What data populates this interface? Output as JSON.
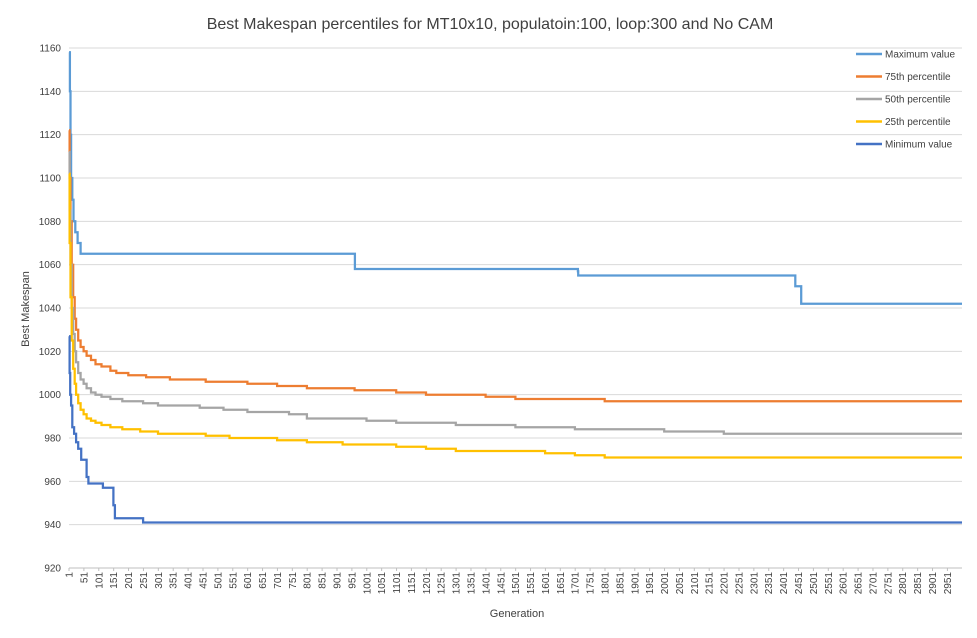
{
  "chart_data": {
    "type": "line",
    "title": "Best Makespan percentiles for MT10x10, populatoin:100, loop:300 and No CAM",
    "xlabel": "Generation",
    "ylabel": "Best Makespan",
    "ylim": [
      920,
      1160
    ],
    "yticks": [
      920,
      940,
      960,
      980,
      1000,
      1020,
      1040,
      1060,
      1080,
      1100,
      1120,
      1140,
      1160
    ],
    "xlim": [
      1,
      3000
    ],
    "xticks": [
      1,
      51,
      101,
      151,
      201,
      251,
      301,
      351,
      401,
      451,
      501,
      551,
      601,
      651,
      701,
      751,
      801,
      851,
      901,
      951,
      1001,
      1051,
      1101,
      1151,
      1201,
      1251,
      1301,
      1351,
      1401,
      1451,
      1501,
      1551,
      1601,
      1651,
      1701,
      1751,
      1801,
      1851,
      1901,
      1951,
      2001,
      2051,
      2101,
      2151,
      2201,
      2251,
      2301,
      2351,
      2401,
      2451,
      2501,
      2551,
      2601,
      2651,
      2701,
      2751,
      2801,
      2851,
      2901,
      2951
    ],
    "grid": "horizontal",
    "legend_position": "top-right",
    "series": [
      {
        "name": "Maximum value",
        "color": "#5b9bd5",
        "x": [
          1,
          4,
          6,
          8,
          12,
          16,
          22,
          30,
          40,
          960,
          961,
          1700,
          1710,
          1711,
          2430,
          2440,
          2441,
          2460,
          2461,
          3000
        ],
        "y": [
          1158,
          1140,
          1120,
          1100,
          1090,
          1080,
          1075,
          1070,
          1065,
          1065,
          1058,
          1058,
          1057,
          1055,
          1055,
          1050,
          1050,
          1042,
          1042,
          1042
        ]
      },
      {
        "name": "75th percentile",
        "color": "#ed7d31",
        "x": [
          1,
          3,
          6,
          10,
          15,
          20,
          25,
          32,
          40,
          50,
          60,
          75,
          90,
          110,
          140,
          160,
          200,
          260,
          340,
          460,
          600,
          700,
          800,
          960,
          1100,
          1200,
          1300,
          1400,
          1500,
          1650,
          1800,
          1900,
          2100,
          2500,
          3000
        ],
        "y": [
          1122,
          1100,
          1080,
          1060,
          1045,
          1035,
          1030,
          1025,
          1022,
          1020,
          1018,
          1016,
          1014,
          1013,
          1011,
          1010,
          1009,
          1008,
          1007,
          1006,
          1005,
          1004,
          1003,
          1002,
          1001,
          1000,
          1000,
          999,
          998,
          998,
          997,
          997,
          997,
          997,
          997
        ]
      },
      {
        "name": "50th percentile",
        "color": "#a5a5a5",
        "x": [
          1,
          3,
          6,
          10,
          15,
          20,
          25,
          32,
          40,
          50,
          60,
          75,
          90,
          110,
          140,
          180,
          250,
          300,
          440,
          520,
          600,
          740,
          800,
          1000,
          1100,
          1300,
          1500,
          1600,
          1700,
          1800,
          2000,
          2100,
          2200,
          3000
        ],
        "y": [
          1112,
          1085,
          1060,
          1040,
          1028,
          1020,
          1015,
          1010,
          1007,
          1005,
          1003,
          1001,
          1000,
          999,
          998,
          997,
          996,
          995,
          994,
          993,
          992,
          991,
          989,
          988,
          987,
          986,
          985,
          985,
          984,
          984,
          983,
          983,
          982,
          982
        ]
      },
      {
        "name": "25th percentile",
        "color": "#ffc000",
        "x": [
          1,
          3,
          6,
          10,
          15,
          20,
          25,
          32,
          40,
          50,
          60,
          75,
          90,
          110,
          140,
          180,
          240,
          300,
          460,
          540,
          700,
          800,
          920,
          1100,
          1200,
          1300,
          1500,
          1600,
          1700,
          1800,
          1900,
          2200,
          3000
        ],
        "y": [
          1102,
          1070,
          1045,
          1025,
          1012,
          1005,
          1000,
          996,
          993,
          991,
          989,
          988,
          987,
          986,
          985,
          984,
          983,
          982,
          981,
          980,
          979,
          978,
          977,
          976,
          975,
          974,
          974,
          973,
          972,
          971,
          971,
          971,
          971
        ]
      },
      {
        "name": "Minimum value",
        "color": "#4472c4",
        "x": [
          1,
          3,
          5,
          8,
          12,
          18,
          25,
          32,
          42,
          60,
          66,
          115,
          150,
          155,
          230,
          250,
          3000
        ],
        "y": [
          1027,
          1010,
          1000,
          995,
          985,
          982,
          978,
          975,
          970,
          962,
          959,
          957,
          949,
          943,
          943,
          941,
          941
        ]
      }
    ]
  }
}
